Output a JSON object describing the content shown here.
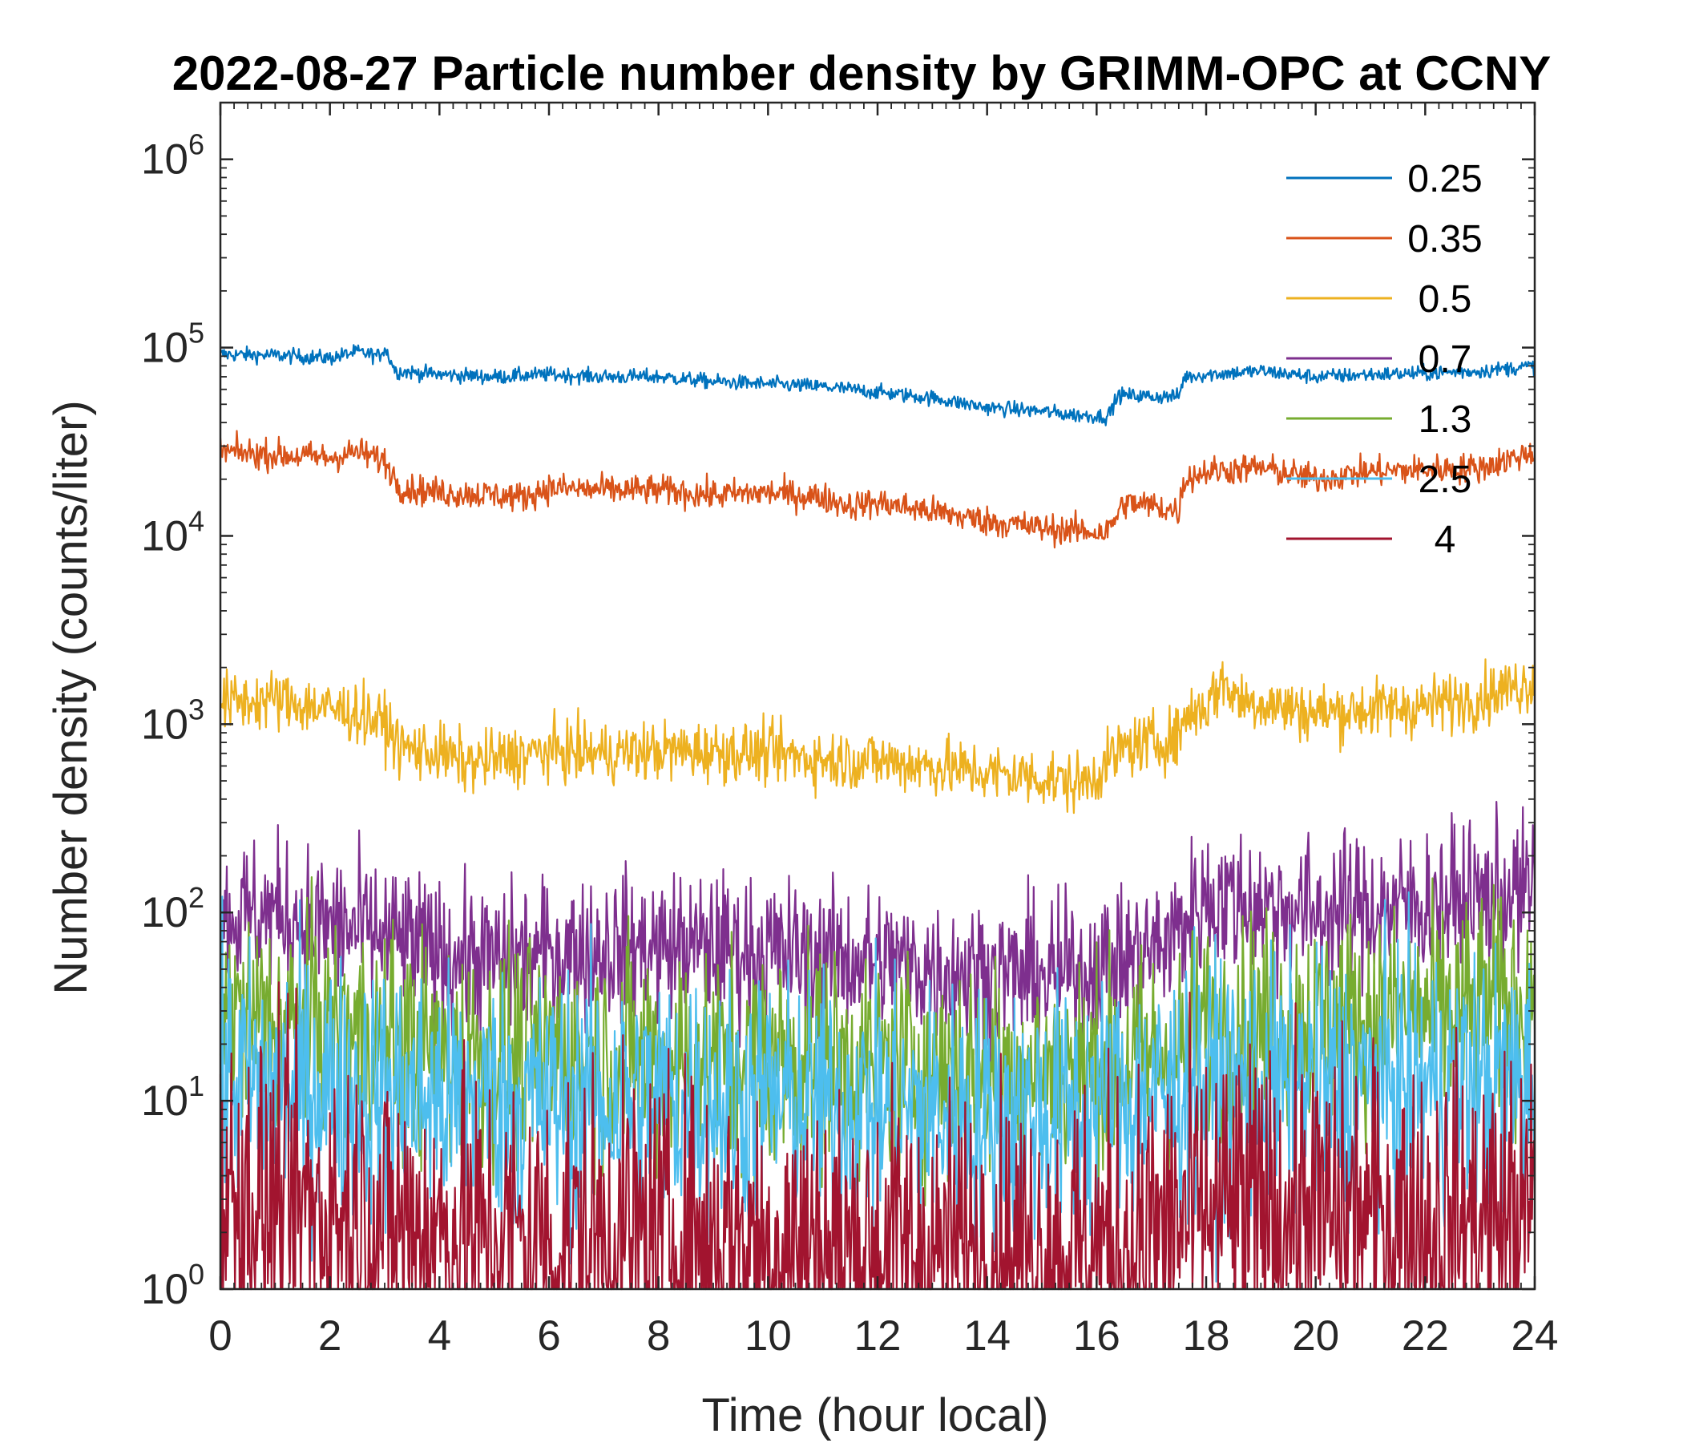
{
  "chart_data": {
    "type": "line",
    "title": "2022-08-27 Particle number density by GRIMM-OPC at CCNY",
    "xlabel": "Time (hour local)",
    "ylabel": "Number density (counts/liter)",
    "xlim": [
      0,
      24
    ],
    "ylim": [
      1,
      2000000
    ],
    "yscale": "log",
    "xticks": [
      0,
      2,
      4,
      6,
      8,
      10,
      12,
      14,
      16,
      18,
      20,
      22,
      24
    ],
    "yticks": [
      {
        "value": 1,
        "base": "10",
        "exp": "0"
      },
      {
        "value": 10,
        "base": "10",
        "exp": "1"
      },
      {
        "value": 100,
        "base": "10",
        "exp": "2"
      },
      {
        "value": 1000,
        "base": "10",
        "exp": "3"
      },
      {
        "value": 10000,
        "base": "10",
        "exp": "4"
      },
      {
        "value": 100000,
        "base": "10",
        "exp": "5"
      },
      {
        "value": 1000000,
        "base": "10",
        "exp": "6"
      }
    ],
    "legend_position": "top-right",
    "grid": false,
    "series": [
      {
        "name": "0.25",
        "color": "#0072BD",
        "noise": 0.02,
        "x": [
          0,
          1,
          2,
          2.5,
          2.9,
          3.0,
          3.2,
          4,
          5,
          6,
          7,
          8,
          9,
          10,
          11,
          12,
          13,
          14,
          15,
          15.5,
          16.2,
          16.4,
          17,
          17.5,
          17.6,
          18,
          19,
          20,
          21,
          22,
          23,
          24
        ],
        "values": [
          92000,
          91000,
          88000,
          95000,
          90000,
          100000,
          75000,
          72000,
          70000,
          72000,
          70000,
          70000,
          66000,
          64000,
          62000,
          58000,
          54000,
          48000,
          46000,
          44000,
          43000,
          56000,
          55000,
          55000,
          70000,
          72000,
          75000,
          70000,
          72000,
          73000,
          75000,
          80000
        ]
      },
      {
        "name": "0.35",
        "color": "#D95319",
        "noise": 0.04,
        "x": [
          0,
          1,
          2,
          2.5,
          3.0,
          3.3,
          4,
          5,
          5.5,
          6,
          7,
          8,
          9,
          10,
          11,
          11.5,
          12,
          13,
          14,
          15,
          16,
          16.2,
          16.5,
          17,
          17.5,
          17.6,
          18,
          19,
          20,
          21,
          22,
          23,
          24
        ],
        "values": [
          28000,
          27000,
          26000,
          28000,
          25000,
          18000,
          17000,
          16500,
          16000,
          18000,
          17500,
          17500,
          16500,
          17000,
          16000,
          14500,
          15000,
          13500,
          12000,
          11000,
          10500,
          10500,
          15000,
          14500,
          13500,
          20000,
          22000,
          23000,
          20000,
          22000,
          22500,
          23000,
          28000
        ]
      },
      {
        "name": "0.5",
        "color": "#EDB120",
        "noise": 0.08,
        "x": [
          0,
          1,
          2,
          2.5,
          3,
          3.3,
          4,
          4.5,
          5,
          6,
          7,
          8,
          9,
          10,
          11,
          12,
          13,
          14,
          15,
          15.7,
          16,
          16.5,
          17,
          17.5,
          17.6,
          18,
          18.3,
          18.6,
          19,
          20,
          21,
          22,
          23,
          24
        ],
        "values": [
          1300,
          1350,
          1200,
          1150,
          1000,
          750,
          700,
          620,
          650,
          720,
          700,
          720,
          720,
          700,
          650,
          640,
          600,
          550,
          520,
          480,
          550,
          750,
          800,
          850,
          1100,
          1250,
          1700,
          1350,
          1300,
          1150,
          1200,
          1250,
          1400,
          1700
        ]
      },
      {
        "name": "0.7",
        "color": "#7E2F8E",
        "noise": 0.2,
        "x": [
          0,
          1,
          2,
          3,
          4,
          5,
          6,
          7,
          8,
          9,
          10,
          11,
          12,
          13,
          14,
          15,
          16,
          17,
          17.5,
          18,
          19,
          20,
          21,
          22,
          23,
          24
        ],
        "values": [
          95,
          100,
          85,
          75,
          60,
          55,
          60,
          65,
          65,
          65,
          62,
          58,
          55,
          50,
          48,
          45,
          50,
          62,
          80,
          120,
          110,
          100,
          105,
          110,
          120,
          130
        ]
      },
      {
        "name": "1.3",
        "color": "#77AC30",
        "noise": 0.3,
        "x": [
          0,
          2,
          4,
          6,
          8,
          10,
          12,
          14,
          16,
          17.5,
          18,
          20,
          22,
          24
        ],
        "values": [
          28,
          24,
          18,
          18,
          17,
          17,
          16,
          14,
          15,
          18,
          24,
          26,
          28,
          34
        ]
      },
      {
        "name": "2.5",
        "color": "#4DBEEE",
        "noise": 0.35,
        "x": [
          0,
          2,
          4,
          6,
          8,
          10,
          12,
          14,
          16,
          18,
          20,
          22,
          24
        ],
        "values": [
          13,
          12,
          10,
          10,
          10,
          10,
          9,
          8,
          9,
          12,
          12,
          12,
          13
        ]
      },
      {
        "name": "4",
        "color": "#A2142F",
        "noise": 0.45,
        "x": [
          0,
          2,
          4,
          6,
          8,
          10,
          12,
          14,
          16,
          18,
          20,
          22,
          24
        ],
        "values": [
          3,
          2.5,
          2,
          1.8,
          1.8,
          1.7,
          1.6,
          1.5,
          1.6,
          2.5,
          2.5,
          2.2,
          2.4
        ]
      }
    ]
  }
}
